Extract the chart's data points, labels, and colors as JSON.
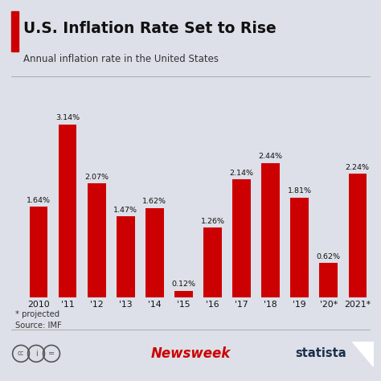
{
  "title": "U.S. Inflation Rate Set to Rise",
  "subtitle": "Annual inflation rate in the United States",
  "categories": [
    "2010",
    "'11",
    "'12",
    "'13",
    "'14",
    "'15",
    "'16",
    "'17",
    "'18",
    "'19",
    "'20*",
    "2021*"
  ],
  "values": [
    1.64,
    3.14,
    2.07,
    1.47,
    1.62,
    0.12,
    1.26,
    2.14,
    2.44,
    1.81,
    0.62,
    2.24
  ],
  "labels": [
    "1.64%",
    "3.14%",
    "2.07%",
    "1.47%",
    "1.62%",
    "0.12%",
    "1.26%",
    "2.14%",
    "2.44%",
    "1.81%",
    "0.62%",
    "2.24%"
  ],
  "bar_color": "#cc0000",
  "bg_color": "#dde0e8",
  "title_color": "#111111",
  "subtitle_color": "#333333",
  "footer_note": "* projected\nSource: IMF",
  "newsweek_color": "#cc0000",
  "statista_color": "#1a2e4a",
  "ylim": [
    0,
    3.6
  ],
  "bar_width": 0.62
}
